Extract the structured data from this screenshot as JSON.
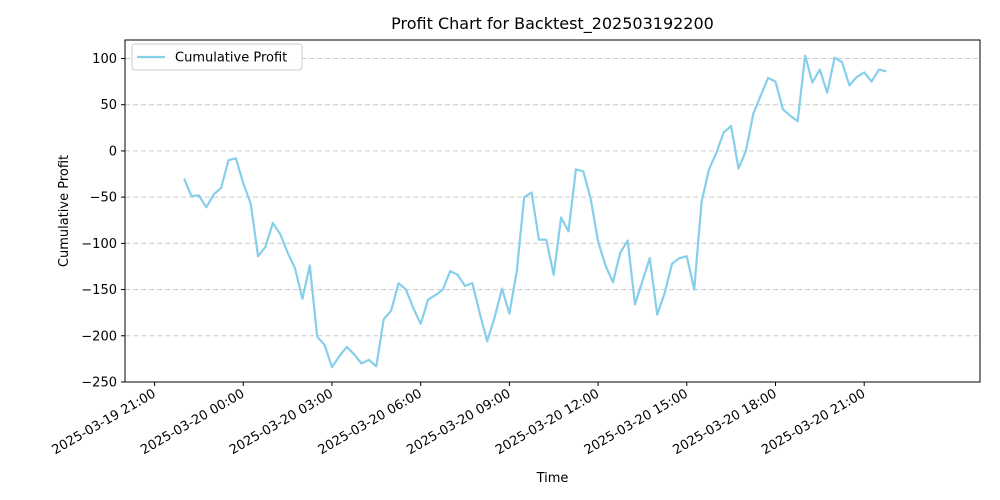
{
  "chart_data": {
    "type": "line",
    "title": "Profit Chart for Backtest_202503192200",
    "xlabel": "Time",
    "ylabel": "Cumulative Profit",
    "ylim": [
      -250,
      120
    ],
    "yticks": [
      100,
      50,
      0,
      -50,
      -100,
      -150,
      -200,
      -250
    ],
    "xlim": [
      "2025-03-19 20:00",
      "2025-03-21 00:55"
    ],
    "xticks": [
      "2025-03-19 21:00",
      "2025-03-20 00:00",
      "2025-03-20 03:00",
      "2025-03-20 06:00",
      "2025-03-20 09:00",
      "2025-03-20 12:00",
      "2025-03-20 15:00",
      "2025-03-20 18:00",
      "2025-03-20 21:00"
    ],
    "grid": "horizontal-dashed",
    "legend_position": "top-left",
    "color": "#87CEEB",
    "series": [
      {
        "name": "Cumulative Profit",
        "x": [
          "2025-03-19 22:00",
          "2025-03-19 22:15",
          "2025-03-19 22:30",
          "2025-03-19 22:45",
          "2025-03-19 23:00",
          "2025-03-19 23:15",
          "2025-03-19 23:30",
          "2025-03-19 23:45",
          "2025-03-20 00:00",
          "2025-03-20 00:15",
          "2025-03-20 00:30",
          "2025-03-20 00:45",
          "2025-03-20 01:00",
          "2025-03-20 01:15",
          "2025-03-20 01:30",
          "2025-03-20 01:45",
          "2025-03-20 02:00",
          "2025-03-20 02:15",
          "2025-03-20 02:30",
          "2025-03-20 02:45",
          "2025-03-20 03:00",
          "2025-03-20 03:15",
          "2025-03-20 03:30",
          "2025-03-20 03:45",
          "2025-03-20 04:00",
          "2025-03-20 04:15",
          "2025-03-20 04:30",
          "2025-03-20 04:45",
          "2025-03-20 05:00",
          "2025-03-20 05:15",
          "2025-03-20 05:30",
          "2025-03-20 05:45",
          "2025-03-20 06:00",
          "2025-03-20 06:15",
          "2025-03-20 06:30",
          "2025-03-20 06:45",
          "2025-03-20 07:00",
          "2025-03-20 07:15",
          "2025-03-20 07:30",
          "2025-03-20 07:45",
          "2025-03-20 08:00",
          "2025-03-20 08:15",
          "2025-03-20 08:30",
          "2025-03-20 08:45",
          "2025-03-20 09:00",
          "2025-03-20 09:15",
          "2025-03-20 09:30",
          "2025-03-20 09:45",
          "2025-03-20 10:00",
          "2025-03-20 10:15",
          "2025-03-20 10:30",
          "2025-03-20 10:45",
          "2025-03-20 11:00",
          "2025-03-20 11:15",
          "2025-03-20 11:30",
          "2025-03-20 11:45",
          "2025-03-20 12:00",
          "2025-03-20 12:15",
          "2025-03-20 12:30",
          "2025-03-20 12:45",
          "2025-03-20 13:00",
          "2025-03-20 13:15",
          "2025-03-20 13:30",
          "2025-03-20 13:45",
          "2025-03-20 14:00",
          "2025-03-20 14:15",
          "2025-03-20 14:30",
          "2025-03-20 14:45",
          "2025-03-20 15:00",
          "2025-03-20 15:15",
          "2025-03-20 15:30",
          "2025-03-20 15:45",
          "2025-03-20 16:00",
          "2025-03-20 16:15",
          "2025-03-20 16:30",
          "2025-03-20 16:45",
          "2025-03-20 17:00",
          "2025-03-20 17:15",
          "2025-03-20 17:30",
          "2025-03-20 17:45",
          "2025-03-20 18:00",
          "2025-03-20 18:15",
          "2025-03-20 18:30",
          "2025-03-20 18:45",
          "2025-03-20 19:00",
          "2025-03-20 19:15",
          "2025-03-20 19:30",
          "2025-03-20 19:45",
          "2025-03-20 20:00",
          "2025-03-20 20:15",
          "2025-03-20 20:30",
          "2025-03-20 20:45",
          "2025-03-20 21:00",
          "2025-03-20 21:15",
          "2025-03-20 21:30",
          "2025-03-20 21:45"
        ],
        "y": [
          -30,
          -49,
          -48,
          -61,
          -47,
          -40,
          -10,
          -8,
          -35,
          -57,
          -114,
          -104,
          -78,
          -90,
          -110,
          -127,
          -160,
          -124,
          -201,
          -210,
          -234,
          -222,
          -212,
          -220,
          -230,
          -226,
          -233,
          -182,
          -173,
          -143,
          -150,
          -170,
          -187,
          -161,
          -156,
          -150,
          -130,
          -134,
          -146,
          -143,
          -176,
          -206,
          -180,
          -149,
          -176,
          -130,
          -50,
          -45,
          -96,
          -96,
          -134,
          -72,
          -87,
          -20,
          -22,
          -52,
          -98,
          -124,
          -142,
          -110,
          -97,
          -166,
          -141,
          -116,
          -177,
          -154,
          -122,
          -116,
          -114,
          -150,
          -55,
          -20,
          -2,
          20,
          27,
          -19,
          0,
          40,
          60,
          79,
          75,
          45,
          38,
          32,
          103,
          74,
          88,
          63,
          101,
          96,
          71,
          80,
          85,
          75,
          88,
          86
        ]
      }
    ]
  }
}
